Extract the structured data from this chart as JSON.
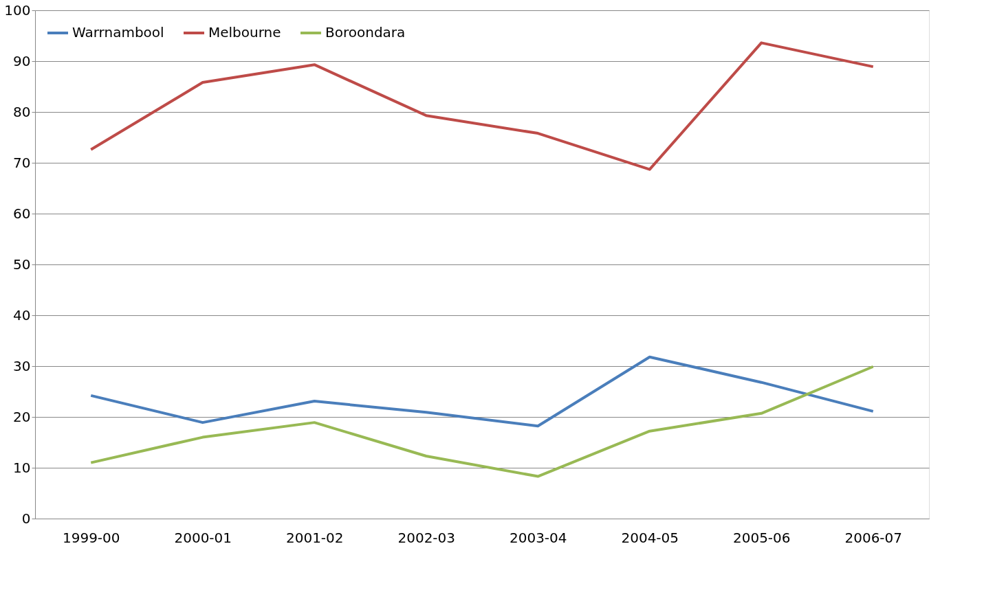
{
  "chart_data": {
    "type": "line",
    "categories": [
      "1999-00",
      "2000-01",
      "2001-02",
      "2002-03",
      "2003-04",
      "2004-05",
      "2005-06",
      "2006-07"
    ],
    "series": [
      {
        "name": "Warrnambool",
        "color": "#4a7ebb",
        "values": [
          24.2,
          18.9,
          23.1,
          20.9,
          18.2,
          31.8,
          26.8,
          21.1
        ]
      },
      {
        "name": "Melbourne",
        "color": "#be4b48",
        "values": [
          72.6,
          85.8,
          89.3,
          79.3,
          75.8,
          68.7,
          93.6,
          88.9
        ]
      },
      {
        "name": "Boroondara",
        "color": "#98b954",
        "values": [
          11,
          16,
          18.9,
          12.3,
          8.3,
          17.2,
          20.7,
          29.9
        ]
      }
    ],
    "ylim": [
      0,
      100
    ],
    "yticks": [
      0,
      10,
      20,
      30,
      40,
      50,
      60,
      70,
      80,
      90,
      100
    ],
    "grid": "y",
    "legend": "top left",
    "marker": "none",
    "line_style": "solid"
  }
}
